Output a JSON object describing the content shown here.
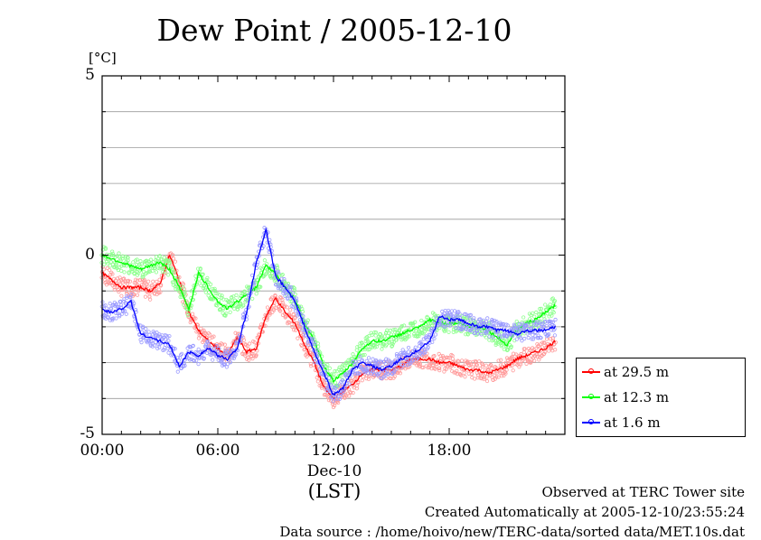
{
  "title": "Dew Point / 2005-12-10",
  "y_unit": "[°C]",
  "x_date_label": "Dec-10",
  "x_unit_label": "(LST)",
  "footer": {
    "site": "Observed at TERC Tower site",
    "created": "Created Automatically at 2005-12-10/23:55:24",
    "source": "Data source : /home/hoivo/new/TERC-data/sorted data/MET.10s.dat"
  },
  "chart_data": {
    "type": "line",
    "title": "Dew Point / 2005-12-10",
    "ylabel": "[°C]",
    "xlabel": "(LST)",
    "xlim": [
      0,
      24
    ],
    "ylim": [
      -5,
      5
    ],
    "x_ticks": [
      "00:00",
      "06:00",
      "12:00",
      "18:00"
    ],
    "x_tick_hours": [
      0,
      6,
      12,
      18
    ],
    "y_ticks": [
      5,
      0,
      -5
    ],
    "y_tick_labels": [
      "5",
      "0",
      "-5"
    ],
    "grid": true,
    "legend_position": "right-bottom",
    "x": [
      0,
      0.5,
      1,
      1.5,
      2,
      2.5,
      3,
      3.5,
      4,
      4.5,
      5,
      5.5,
      6,
      6.5,
      7,
      7.5,
      8,
      8.5,
      9,
      9.5,
      10,
      10.5,
      11,
      11.5,
      12,
      12.5,
      13,
      13.5,
      14,
      14.5,
      15,
      15.5,
      16,
      16.5,
      17,
      17.5,
      18,
      18.5,
      19,
      19.5,
      20,
      20.5,
      21,
      21.5,
      22,
      22.5,
      23,
      23.5
    ],
    "series": [
      {
        "name": "at 29.5 m",
        "color": "#ff0000",
        "values": [
          -0.5,
          -0.7,
          -0.9,
          -0.9,
          -0.9,
          -1.0,
          -0.8,
          0.0,
          -0.7,
          -1.6,
          -2.1,
          -2.4,
          -2.6,
          -2.8,
          -2.3,
          -2.7,
          -2.6,
          -1.7,
          -1.2,
          -1.6,
          -1.9,
          -2.5,
          -3.0,
          -3.7,
          -4.0,
          -3.8,
          -3.6,
          -3.3,
          -3.2,
          -3.2,
          -3.2,
          -3.1,
          -2.9,
          -2.9,
          -2.9,
          -3.0,
          -3.0,
          -3.1,
          -3.2,
          -3.2,
          -3.3,
          -3.2,
          -3.1,
          -2.9,
          -2.8,
          -2.7,
          -2.6,
          -2.4
        ]
      },
      {
        "name": "at 12.3 m",
        "color": "#00ff00",
        "values": [
          0.0,
          -0.1,
          -0.2,
          -0.3,
          -0.4,
          -0.3,
          -0.2,
          -0.4,
          -0.9,
          -1.5,
          -0.5,
          -0.9,
          -1.3,
          -1.5,
          -1.3,
          -1.1,
          -0.9,
          -0.3,
          -0.5,
          -0.9,
          -1.2,
          -1.9,
          -2.4,
          -3.1,
          -3.5,
          -3.3,
          -3.0,
          -2.6,
          -2.4,
          -2.4,
          -2.3,
          -2.2,
          -2.1,
          -2.0,
          -1.8,
          -1.9,
          -1.9,
          -1.9,
          -2.0,
          -2.0,
          -2.1,
          -2.3,
          -2.5,
          -2.1,
          -1.9,
          -1.8,
          -1.6,
          -1.4
        ]
      },
      {
        "name": "at 1.6 m",
        "color": "#0000ff",
        "values": [
          -1.5,
          -1.6,
          -1.5,
          -1.3,
          -2.2,
          -2.3,
          -2.4,
          -2.5,
          -3.1,
          -2.7,
          -2.8,
          -2.6,
          -2.8,
          -2.9,
          -2.6,
          -1.6,
          -0.2,
          0.7,
          -0.6,
          -0.9,
          -1.3,
          -2.0,
          -2.7,
          -3.3,
          -3.9,
          -3.7,
          -3.2,
          -3.0,
          -3.1,
          -3.2,
          -3.1,
          -2.9,
          -2.8,
          -2.6,
          -2.4,
          -1.7,
          -1.8,
          -1.8,
          -1.9,
          -2.0,
          -2.0,
          -2.1,
          -2.1,
          -2.2,
          -2.1,
          -2.1,
          -2.1,
          -2.0
        ]
      }
    ]
  }
}
